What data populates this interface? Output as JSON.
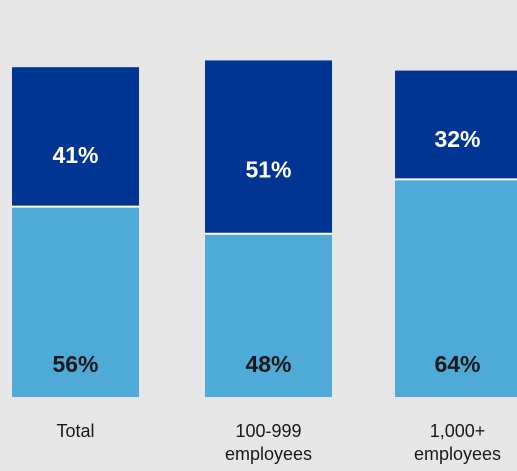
{
  "colors": {
    "background": "#e6e6e6",
    "dark_segment": "#003594",
    "light_segment": "#4faad8",
    "segment_divider": "#ffffff",
    "label_on_dark": "#ffffff",
    "label_on_light": "#1a1a1a"
  },
  "chart_data": {
    "type": "bar",
    "stacked": true,
    "categories": [
      {
        "lines": [
          "Total"
        ]
      },
      {
        "lines": [
          "100-999",
          "employees"
        ]
      },
      {
        "lines": [
          "1,000+",
          "employees"
        ]
      }
    ],
    "series": [
      {
        "name": "",
        "color": "#4faad8",
        "values": [
          56,
          48,
          64
        ],
        "labels": [
          "56%",
          "48%",
          "64%"
        ]
      },
      {
        "name": "",
        "color": "#003594",
        "values": [
          41,
          51,
          32
        ],
        "labels": [
          "41%",
          "51%",
          "32%"
        ]
      }
    ],
    "y_unit": "%",
    "grid": false,
    "legend": "none"
  }
}
